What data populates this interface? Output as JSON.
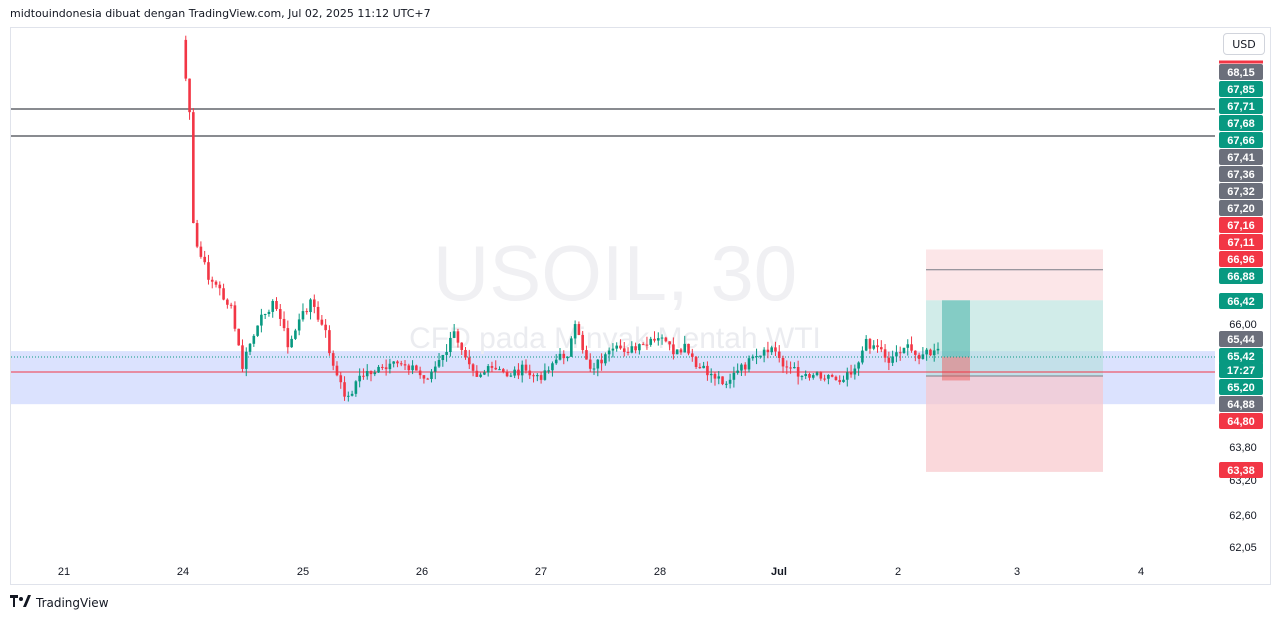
{
  "header": {
    "caption": "midtouindonesia dibuat dengan TradingView.com, Jul 02, 2025 11:12 UTC+7"
  },
  "currency": "USD",
  "footer": {
    "brand_text": "TradingView"
  },
  "icons": {
    "footer_logo": "tradingview-logo-icon"
  },
  "colors": {
    "bull": "#089981",
    "bear": "#f23645",
    "zone": "#c7d2fe",
    "profit_box": "#b2dfdb",
    "loss_box": "#f8c8cc",
    "price_line": "#f23645",
    "gray_label": "#6b6f7b"
  },
  "chart_data": {
    "type": "candlestick",
    "symbol": "USOIL, 30",
    "watermark_title": "USOIL, 30",
    "watermark_subtitle": "CFD pada Minyak Mentah WTI",
    "x_ticks": [
      "21",
      "24",
      "25",
      "26",
      "27",
      "28",
      "Jul",
      "2",
      "3",
      "4"
    ],
    "y_ticks": [
      "66,00",
      "63,80",
      "63,20",
      "62,60",
      "62,05"
    ],
    "ylim": [
      61.9,
      69.4
    ],
    "last_price": "65,42",
    "countdown": "17:27",
    "horizontal_lines": [
      67.71,
      67.41
    ],
    "zone": {
      "top": 65.52,
      "bottom": 64.58
    },
    "position": {
      "entry": 65.42,
      "target": 66.42,
      "stop": 65.08,
      "outer_top": 67.32,
      "outer_bottom": 63.38
    },
    "price_labels": [
      {
        "text": "68,15",
        "kind": "gray"
      },
      {
        "text": "67,85",
        "kind": "green"
      },
      {
        "text": "67,71",
        "kind": "green"
      },
      {
        "text": "67,68",
        "kind": "green"
      },
      {
        "text": "67,66",
        "kind": "green"
      },
      {
        "text": "67,41",
        "kind": "gray"
      },
      {
        "text": "67,36",
        "kind": "gray"
      },
      {
        "text": "67,32",
        "kind": "gray"
      },
      {
        "text": "67,20",
        "kind": "gray"
      },
      {
        "text": "67,16",
        "kind": "red"
      },
      {
        "text": "67,11",
        "kind": "red"
      },
      {
        "text": "66,96",
        "kind": "red"
      },
      {
        "text": "66,88",
        "kind": "green"
      },
      {
        "text": "66,42",
        "kind": "green"
      },
      {
        "text": "65,44",
        "kind": "gray"
      },
      {
        "text": "65,42",
        "kind": "green"
      },
      {
        "text": "17:27",
        "kind": "green"
      },
      {
        "text": "65,20",
        "kind": "green"
      },
      {
        "text": "64,88",
        "kind": "gray"
      },
      {
        "text": "64,80",
        "kind": "red"
      },
      {
        "text": "63,38",
        "kind": "red"
      }
    ],
    "anchors": [
      [
        0,
        69.3
      ],
      [
        2,
        68.5
      ],
      [
        4,
        67.6
      ],
      [
        7,
        67.0
      ],
      [
        10,
        66.7
      ],
      [
        13,
        66.3
      ],
      [
        16,
        65.1
      ],
      [
        18,
        65.6
      ],
      [
        20,
        65.9
      ],
      [
        22,
        66.3
      ],
      [
        24,
        66.4
      ],
      [
        26,
        66.2
      ],
      [
        28,
        65.5
      ],
      [
        30,
        65.9
      ],
      [
        32,
        66.2
      ],
      [
        34,
        66.5
      ],
      [
        36,
        66.1
      ],
      [
        38,
        65.8
      ],
      [
        40,
        65.1
      ],
      [
        42,
        64.7
      ],
      [
        44,
        64.45
      ],
      [
        46,
        64.8
      ],
      [
        49,
        65.0
      ],
      [
        54,
        65.05
      ],
      [
        58,
        65.2
      ],
      [
        61,
        65.1
      ],
      [
        64,
        64.85
      ],
      [
        66,
        65.0
      ],
      [
        69,
        65.3
      ],
      [
        72,
        65.8
      ],
      [
        75,
        65.4
      ],
      [
        78,
        64.95
      ],
      [
        82,
        65.05
      ],
      [
        86,
        64.95
      ],
      [
        90,
        65.05
      ],
      [
        94,
        64.85
      ],
      [
        98,
        65.2
      ],
      [
        102,
        65.4
      ],
      [
        104,
        65.9
      ],
      [
        106,
        65.5
      ],
      [
        108,
        65.1
      ],
      [
        112,
        65.3
      ],
      [
        116,
        65.5
      ],
      [
        120,
        65.45
      ],
      [
        124,
        65.6
      ],
      [
        128,
        65.7
      ],
      [
        130,
        65.3
      ],
      [
        133,
        65.5
      ],
      [
        136,
        65.1
      ],
      [
        140,
        64.95
      ],
      [
        144,
        64.8
      ],
      [
        147,
        65.0
      ],
      [
        150,
        65.2
      ],
      [
        153,
        65.3
      ],
      [
        156,
        65.5
      ],
      [
        158,
        65.3
      ],
      [
        160,
        65.1
      ],
      [
        164,
        64.95
      ],
      [
        168,
        64.98
      ],
      [
        172,
        64.9
      ],
      [
        174,
        64.85
      ],
      [
        176,
        65.0
      ],
      [
        178,
        65.1
      ],
      [
        181,
        65.6
      ],
      [
        184,
        65.55
      ],
      [
        187,
        65.25
      ],
      [
        189,
        65.4
      ],
      [
        191,
        65.55
      ],
      [
        194,
        65.35
      ],
      [
        196,
        65.4
      ],
      [
        199,
        65.38
      ],
      [
        200,
        65.42
      ]
    ]
  }
}
